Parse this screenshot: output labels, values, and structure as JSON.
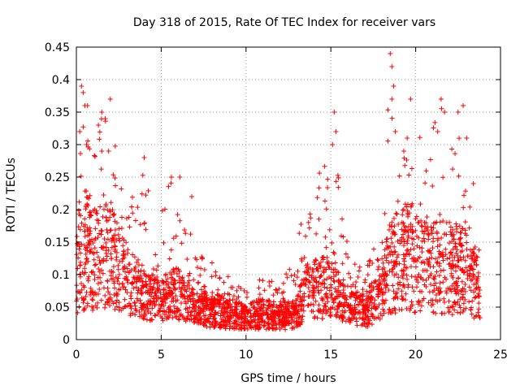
{
  "chart_data": {
    "type": "scatter",
    "title": "Day 318 of 2015, Rate Of TEC Index for receiver vars",
    "xlabel": "GPS time / hours",
    "ylabel": "ROTI / TECUs",
    "xlim": [
      0,
      25
    ],
    "ylim": [
      0,
      0.45
    ],
    "xticks": [
      0,
      5,
      10,
      15,
      20,
      25
    ],
    "xtick_labels": [
      "0",
      "5",
      "10",
      "15",
      "20",
      "25"
    ],
    "yticks": [
      0,
      0.05,
      0.1,
      0.15,
      0.2,
      0.25,
      0.3,
      0.35,
      0.4,
      0.45
    ],
    "ytick_labels": [
      "0",
      "0.05",
      "0.1",
      "0.15",
      "0.2",
      "0.25",
      "0.3",
      "0.35",
      "0.4",
      "0.45"
    ],
    "grid": true,
    "marker": "+",
    "series": [
      {
        "name": "ROTI",
        "color": "#ff0000",
        "envelope": [
          [
            0.0,
            0.02,
            0.12,
            0.26
          ],
          [
            0.5,
            0.02,
            0.14,
            0.4
          ],
          [
            1.0,
            0.02,
            0.12,
            0.28
          ],
          [
            1.5,
            0.02,
            0.13,
            0.35
          ],
          [
            2.0,
            0.02,
            0.12,
            0.37
          ],
          [
            2.5,
            0.02,
            0.12,
            0.25
          ],
          [
            3.0,
            0.02,
            0.09,
            0.2
          ],
          [
            4.0,
            0.02,
            0.07,
            0.28
          ],
          [
            5.0,
            0.02,
            0.06,
            0.2
          ],
          [
            5.5,
            0.02,
            0.07,
            0.26
          ],
          [
            6.0,
            0.02,
            0.07,
            0.25
          ],
          [
            7.0,
            0.02,
            0.05,
            0.14
          ],
          [
            8.0,
            0.01,
            0.045,
            0.12
          ],
          [
            9.0,
            0.01,
            0.04,
            0.1
          ],
          [
            10.0,
            0.01,
            0.035,
            0.08
          ],
          [
            11.0,
            0.01,
            0.04,
            0.11
          ],
          [
            12.0,
            0.01,
            0.035,
            0.09
          ],
          [
            13.0,
            0.01,
            0.04,
            0.15
          ],
          [
            13.5,
            0.02,
            0.08,
            0.23
          ],
          [
            14.0,
            0.02,
            0.08,
            0.23
          ],
          [
            15.0,
            0.02,
            0.08,
            0.35
          ],
          [
            15.5,
            0.02,
            0.07,
            0.25
          ],
          [
            16.0,
            0.02,
            0.05,
            0.14
          ],
          [
            17.0,
            0.01,
            0.045,
            0.1
          ],
          [
            18.0,
            0.02,
            0.07,
            0.19
          ],
          [
            18.5,
            0.02,
            0.11,
            0.44
          ],
          [
            19.0,
            0.02,
            0.12,
            0.36
          ],
          [
            19.5,
            0.02,
            0.13,
            0.3
          ],
          [
            20.0,
            0.02,
            0.12,
            0.37
          ],
          [
            20.5,
            0.02,
            0.11,
            0.26
          ],
          [
            21.0,
            0.02,
            0.11,
            0.33
          ],
          [
            21.5,
            0.02,
            0.12,
            0.37
          ],
          [
            22.0,
            0.02,
            0.11,
            0.28
          ],
          [
            22.5,
            0.02,
            0.11,
            0.36
          ],
          [
            23.0,
            0.02,
            0.1,
            0.25
          ],
          [
            23.5,
            0.02,
            0.08,
            0.17
          ],
          [
            23.8,
            0.02,
            0.06,
            0.14
          ]
        ],
        "highlighted_points": [
          [
            0.3,
            0.39
          ],
          [
            0.4,
            0.38
          ],
          [
            0.5,
            0.36
          ],
          [
            0.2,
            0.32
          ],
          [
            0.6,
            0.3
          ],
          [
            1.3,
            0.33
          ],
          [
            1.5,
            0.35
          ],
          [
            1.7,
            0.34
          ],
          [
            2.0,
            0.37
          ],
          [
            1.5,
            0.29
          ],
          [
            1.9,
            0.29
          ],
          [
            4.0,
            0.28
          ],
          [
            5.6,
            0.25
          ],
          [
            6.1,
            0.25
          ],
          [
            6.8,
            0.22
          ],
          [
            15.2,
            0.35
          ],
          [
            15.3,
            0.32
          ],
          [
            15.1,
            0.3
          ],
          [
            18.5,
            0.44
          ],
          [
            18.6,
            0.42
          ],
          [
            18.7,
            0.39
          ],
          [
            18.6,
            0.37
          ],
          [
            18.8,
            0.32
          ],
          [
            19.7,
            0.37
          ],
          [
            19.5,
            0.31
          ],
          [
            19.3,
            0.29
          ],
          [
            21.5,
            0.37
          ],
          [
            21.7,
            0.35
          ],
          [
            21.3,
            0.32
          ],
          [
            22.5,
            0.35
          ],
          [
            22.8,
            0.36
          ],
          [
            23.0,
            0.31
          ],
          [
            23.4,
            0.24
          ]
        ]
      }
    ]
  }
}
